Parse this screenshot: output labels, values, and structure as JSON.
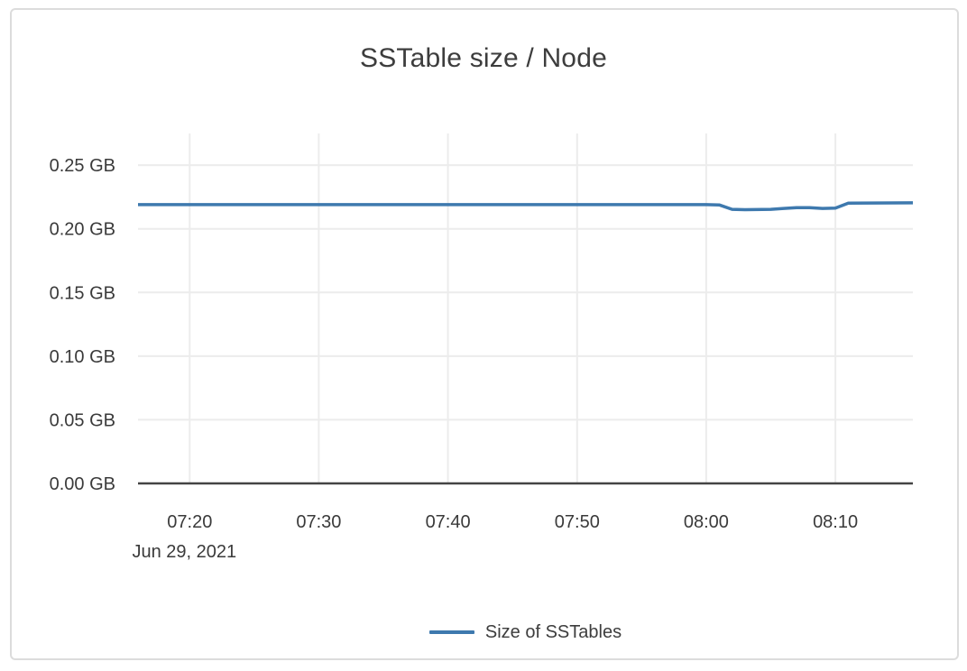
{
  "chart_data": {
    "type": "line",
    "title": "SSTable size / Node",
    "x_axis": {
      "date_label": "Jun 29, 2021",
      "range": [
        "07:16",
        "08:16"
      ],
      "ticks": [
        "07:20",
        "07:30",
        "07:40",
        "07:50",
        "08:00",
        "08:10"
      ]
    },
    "y_axis": {
      "unit": "GB",
      "range_gb": [
        0,
        0.2749
      ],
      "ticks": [
        {
          "value_gb": 0.0,
          "label": "0.00 GB"
        },
        {
          "value_gb": 0.05,
          "label": "0.05 GB"
        },
        {
          "value_gb": 0.1,
          "label": "0.10 GB"
        },
        {
          "value_gb": 0.15,
          "label": "0.15 GB"
        },
        {
          "value_gb": 0.2,
          "label": "0.20 GB"
        },
        {
          "value_gb": 0.25,
          "label": "0.25 GB"
        }
      ]
    },
    "grid": true,
    "legend_position": "bottom-center",
    "series": [
      {
        "name": "Size of SSTables",
        "color": "#3e79ae",
        "points": [
          {
            "time": "07:16",
            "value_gb": 0.219
          },
          {
            "time": "07:30",
            "value_gb": 0.219
          },
          {
            "time": "07:45",
            "value_gb": 0.219
          },
          {
            "time": "08:00",
            "value_gb": 0.219
          },
          {
            "time": "08:01",
            "value_gb": 0.2188
          },
          {
            "time": "08:02",
            "value_gb": 0.2153
          },
          {
            "time": "08:03",
            "value_gb": 0.215
          },
          {
            "time": "08:05",
            "value_gb": 0.2153
          },
          {
            "time": "08:06",
            "value_gb": 0.216
          },
          {
            "time": "08:07",
            "value_gb": 0.2166
          },
          {
            "time": "08:08",
            "value_gb": 0.2166
          },
          {
            "time": "08:09",
            "value_gb": 0.216
          },
          {
            "time": "08:10",
            "value_gb": 0.2163
          },
          {
            "time": "08:11",
            "value_gb": 0.2202
          },
          {
            "time": "08:16",
            "value_gb": 0.2204
          }
        ]
      }
    ]
  },
  "colors": {
    "background": "#ffffff",
    "card_border": "#dcdcdc",
    "grid": "#ececec",
    "axis": "#444444",
    "tick_text": "#3a3a3a",
    "title_text": "#3d3d3d",
    "series_blue": "#3e79ae"
  }
}
